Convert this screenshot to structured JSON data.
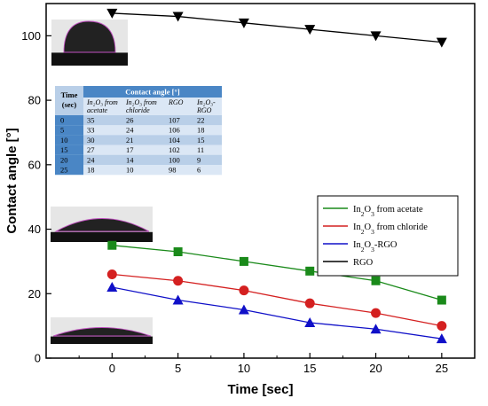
{
  "chart_data": {
    "type": "line",
    "xlabel": "Time [sec]",
    "ylabel": "Contact angle [°]",
    "xlim": [
      -5,
      27.5
    ],
    "ylim": [
      0,
      110
    ],
    "x_ticks": [
      0,
      5,
      10,
      15,
      20,
      25
    ],
    "y_ticks": [
      0,
      20,
      40,
      60,
      80,
      100
    ],
    "x": [
      0,
      5,
      10,
      15,
      20,
      25
    ],
    "series": [
      {
        "name": "In2O3 from acetate",
        "name_parts": [
          "In",
          "2",
          "O",
          "3",
          " from acetate"
        ],
        "color": "#1a8a1a",
        "marker": "square",
        "values": [
          35,
          33,
          30,
          27,
          24,
          18
        ]
      },
      {
        "name": "In2O3 from chloride",
        "name_parts": [
          "In",
          "2",
          "O",
          "3",
          " from chloride"
        ],
        "color": "#d42020",
        "marker": "circle",
        "values": [
          26,
          24,
          21,
          17,
          14,
          10
        ]
      },
      {
        "name": "In2O3-RGO",
        "name_parts": [
          "In",
          "2",
          "O",
          "3",
          "-RGO"
        ],
        "color": "#1010c8",
        "marker": "triangle",
        "values": [
          22,
          18,
          15,
          11,
          9,
          6
        ]
      },
      {
        "name": "RGO",
        "name_parts": [
          "RGO",
          "",
          "",
          "",
          ""
        ],
        "color": "#000000",
        "marker": "triangle-down",
        "values": [
          107,
          106,
          104,
          102,
          100,
          98
        ]
      }
    ],
    "legend_position": "right",
    "grid": false
  },
  "table": {
    "header_time": [
      "Time",
      "(sec)"
    ],
    "header_group": "Contact angle [°]",
    "columns": [
      [
        "In₂O₃ from",
        "acetate"
      ],
      [
        "In₂O₃ from",
        "chloride"
      ],
      [
        "RGO",
        ""
      ],
      [
        "In₂O₃-",
        "RGO"
      ]
    ],
    "rows": [
      [
        "0",
        "35",
        "26",
        "107",
        "22"
      ],
      [
        "5",
        "33",
        "24",
        "106",
        "18"
      ],
      [
        "10",
        "30",
        "21",
        "104",
        "15"
      ],
      [
        "15",
        "27",
        "17",
        "102",
        "11"
      ],
      [
        "20",
        "24",
        "14",
        "100",
        "9"
      ],
      [
        "25",
        "18",
        "10",
        "98",
        "6"
      ]
    ]
  },
  "colors": {
    "table_header": "#4a86c5",
    "table_row_light": "#dbe7f5",
    "table_row_dark": "#b9cfe8",
    "droplet_outline": "#c050c0"
  }
}
